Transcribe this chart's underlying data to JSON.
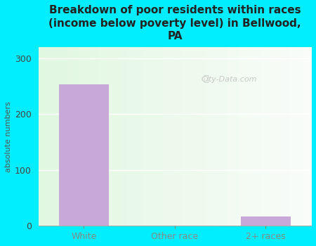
{
  "title": "Breakdown of poor residents within races\n(income below poverty level) in Bellwood,\nPA",
  "categories": [
    "White",
    "Other race",
    "2+ races"
  ],
  "values": [
    253,
    0,
    17
  ],
  "bar_color": "#c8a8d8",
  "ylabel": "absolute numbers",
  "ylim": [
    0,
    320
  ],
  "yticks": [
    0,
    100,
    200,
    300
  ],
  "bg_outer": "#00eeff",
  "title_fontsize": 11,
  "axis_label_fontsize": 8,
  "tick_fontsize": 9,
  "watermark": "City-Data.com"
}
